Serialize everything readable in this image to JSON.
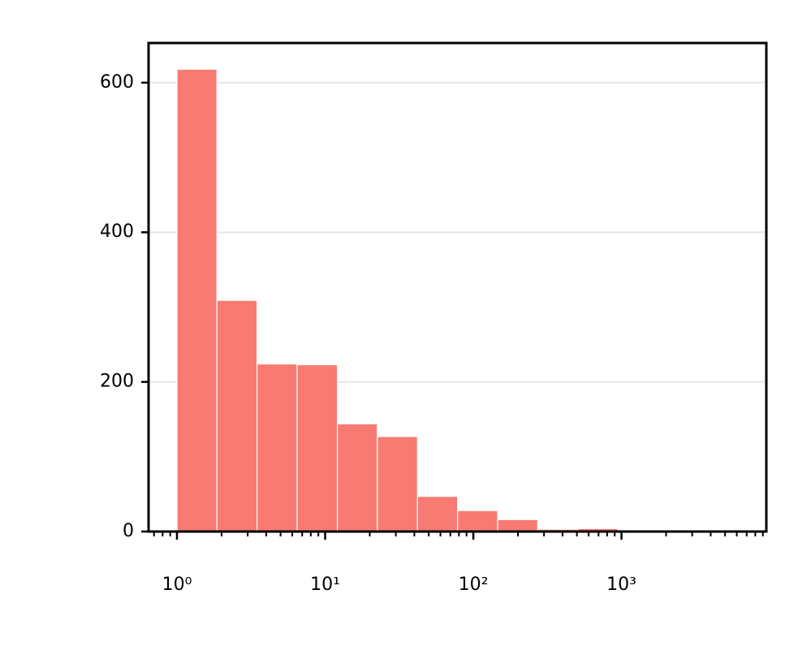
{
  "chart_data": {
    "type": "histogram",
    "bins": [
      1,
      1.86,
      3.47,
      6.47,
      12.1,
      22.5,
      42,
      78.3,
      146,
      272,
      507,
      944
    ],
    "values": [
      618,
      309,
      224,
      223,
      144,
      127,
      47,
      28,
      16,
      3,
      4
    ],
    "color": "#f77b72",
    "xscale": "log",
    "xlim": [
      0.643,
      9500
    ],
    "xticks": [
      {
        "value": 1,
        "label": "10⁰"
      },
      {
        "value": 10,
        "label": "10¹"
      },
      {
        "value": 100,
        "label": "10²"
      },
      {
        "value": 1000,
        "label": "10³"
      }
    ],
    "ylim": [
      0,
      653
    ],
    "yticks": [
      0,
      200,
      400,
      600
    ],
    "grid": true
  }
}
